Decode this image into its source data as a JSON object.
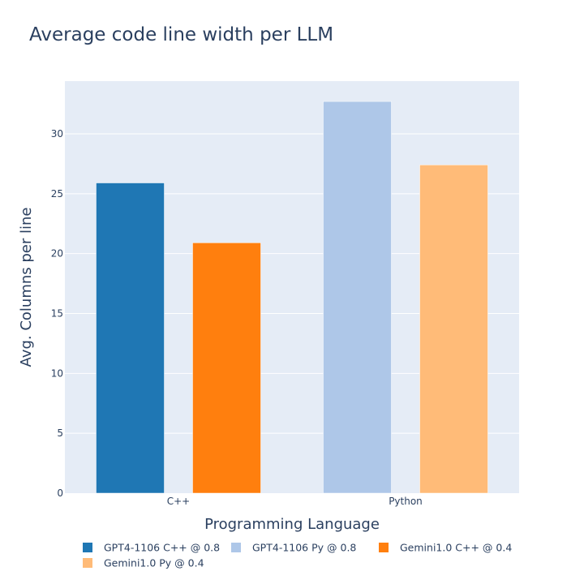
{
  "chart_data": {
    "type": "bar",
    "title": "Average code line width per LLM",
    "xlabel": "Programming Language",
    "ylabel": "Avg. Columns per line",
    "categories": [
      "C++",
      "Python"
    ],
    "ylim": [
      0,
      34.4
    ],
    "yticks": [
      0,
      5,
      10,
      15,
      20,
      25,
      30
    ],
    "grid": true,
    "legend_position": "bottom",
    "series": [
      {
        "name": "GPT4-1106 C++ @ 0.8",
        "category": "C++",
        "value": 25.9,
        "color": "#1f77b4"
      },
      {
        "name": "Gemini1.0 C++ @ 0.4",
        "category": "C++",
        "value": 20.9,
        "color": "#ff7f0e"
      },
      {
        "name": "GPT4-1106 Py @ 0.8",
        "category": "Python",
        "value": 32.7,
        "color": "#aec7e8"
      },
      {
        "name": "Gemini1.0 Py @ 0.4",
        "category": "Python",
        "value": 27.4,
        "color": "#ffbb78"
      }
    ],
    "legend_order": [
      "GPT4-1106 C++ @ 0.8",
      "GPT4-1106 Py @ 0.8",
      "Gemini1.0 C++ @ 0.4",
      "Gemini1.0 Py @ 0.4"
    ],
    "colors": {
      "plot_background": "#e5ecf6",
      "gridline": "#ffffff",
      "text": "#2a3f5f"
    }
  }
}
